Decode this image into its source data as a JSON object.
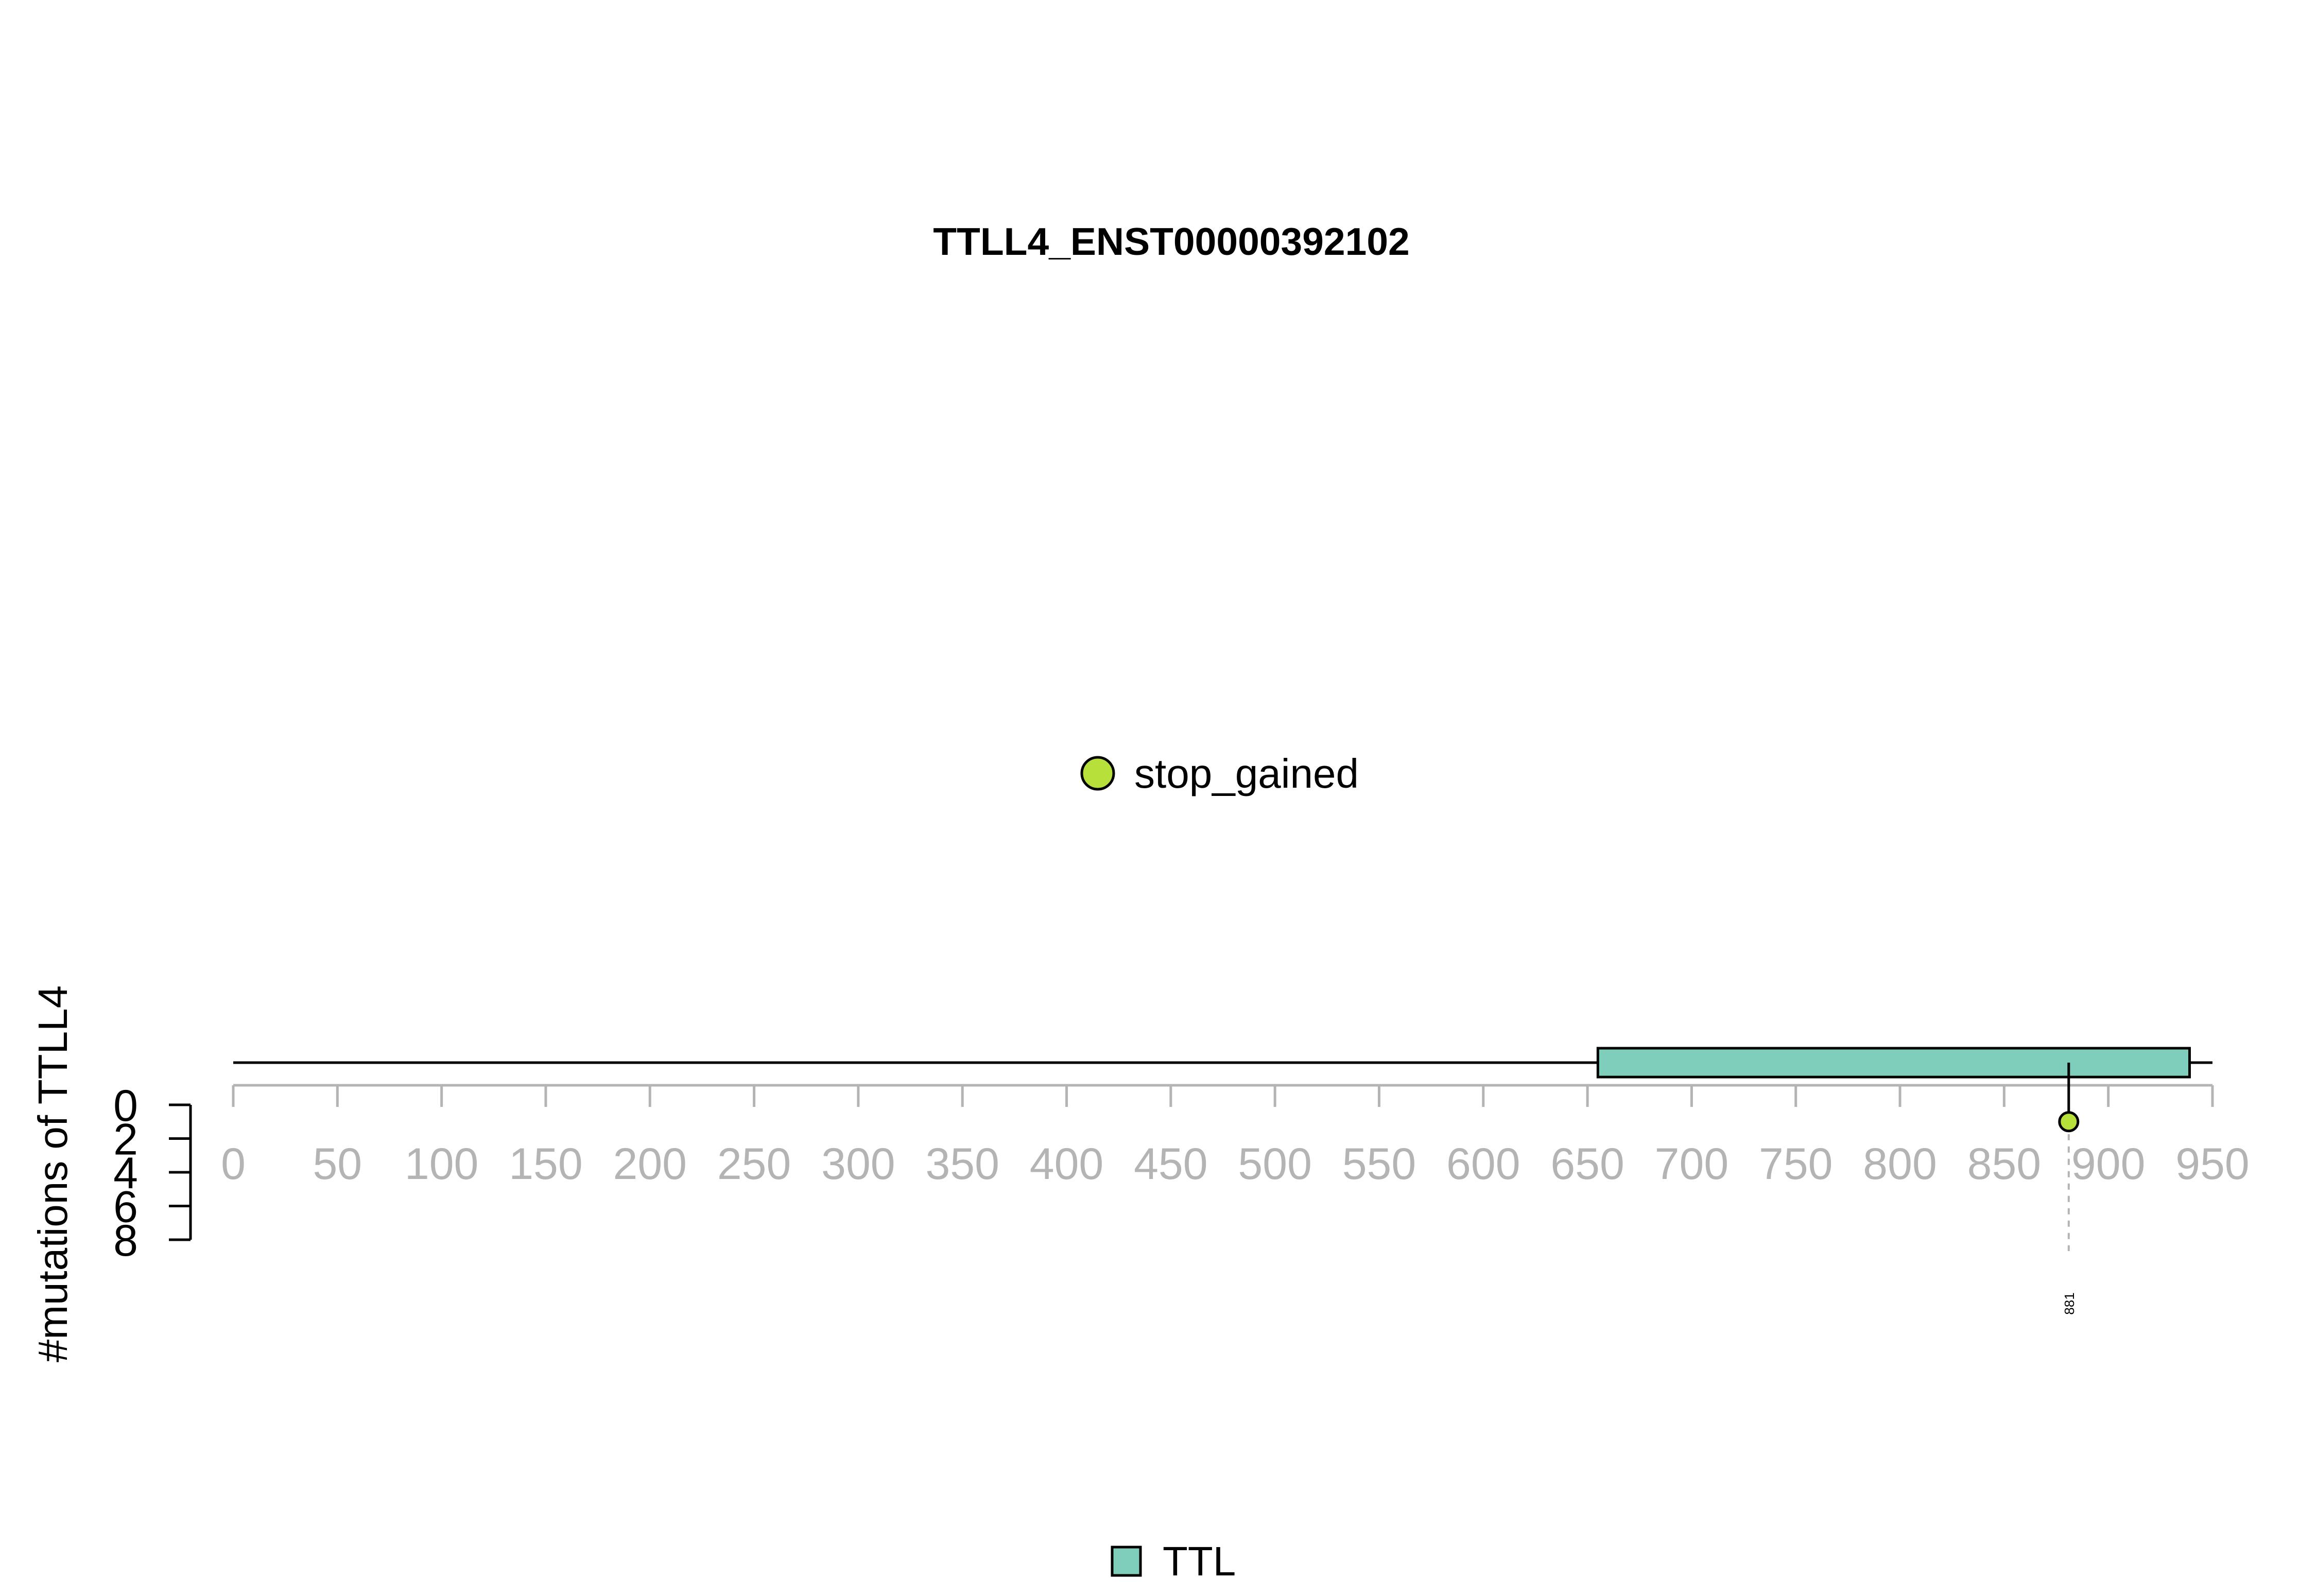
{
  "chart_data": {
    "type": "lollipop",
    "title": "TTLL4_ENST00000392102",
    "ylabel": "#mutations of TTLL4",
    "protein_length": 950,
    "xlim": [
      0,
      950
    ],
    "xticks": [
      "0",
      "50",
      "100",
      "150",
      "200",
      "250",
      "300",
      "350",
      "400",
      "450",
      "500",
      "550",
      "600",
      "650",
      "700",
      "750",
      "800",
      "850",
      "900",
      "950"
    ],
    "ylim": [
      0,
      8
    ],
    "yticks": [
      "0",
      "2",
      "4",
      "6",
      "8"
    ],
    "domains": [
      {
        "name": "TTL",
        "start": 655,
        "end": 939,
        "color": "#7fcdbb"
      }
    ],
    "mutations": [
      {
        "position": 881,
        "label": "881",
        "count": 1,
        "type": "stop_gained",
        "color": "#b8e03a"
      }
    ],
    "mutation_legend": [
      {
        "label": "stop_gained",
        "color": "#b8e03a"
      }
    ],
    "domain_legend": [
      {
        "label": "TTL",
        "color": "#7fcdbb"
      }
    ]
  }
}
